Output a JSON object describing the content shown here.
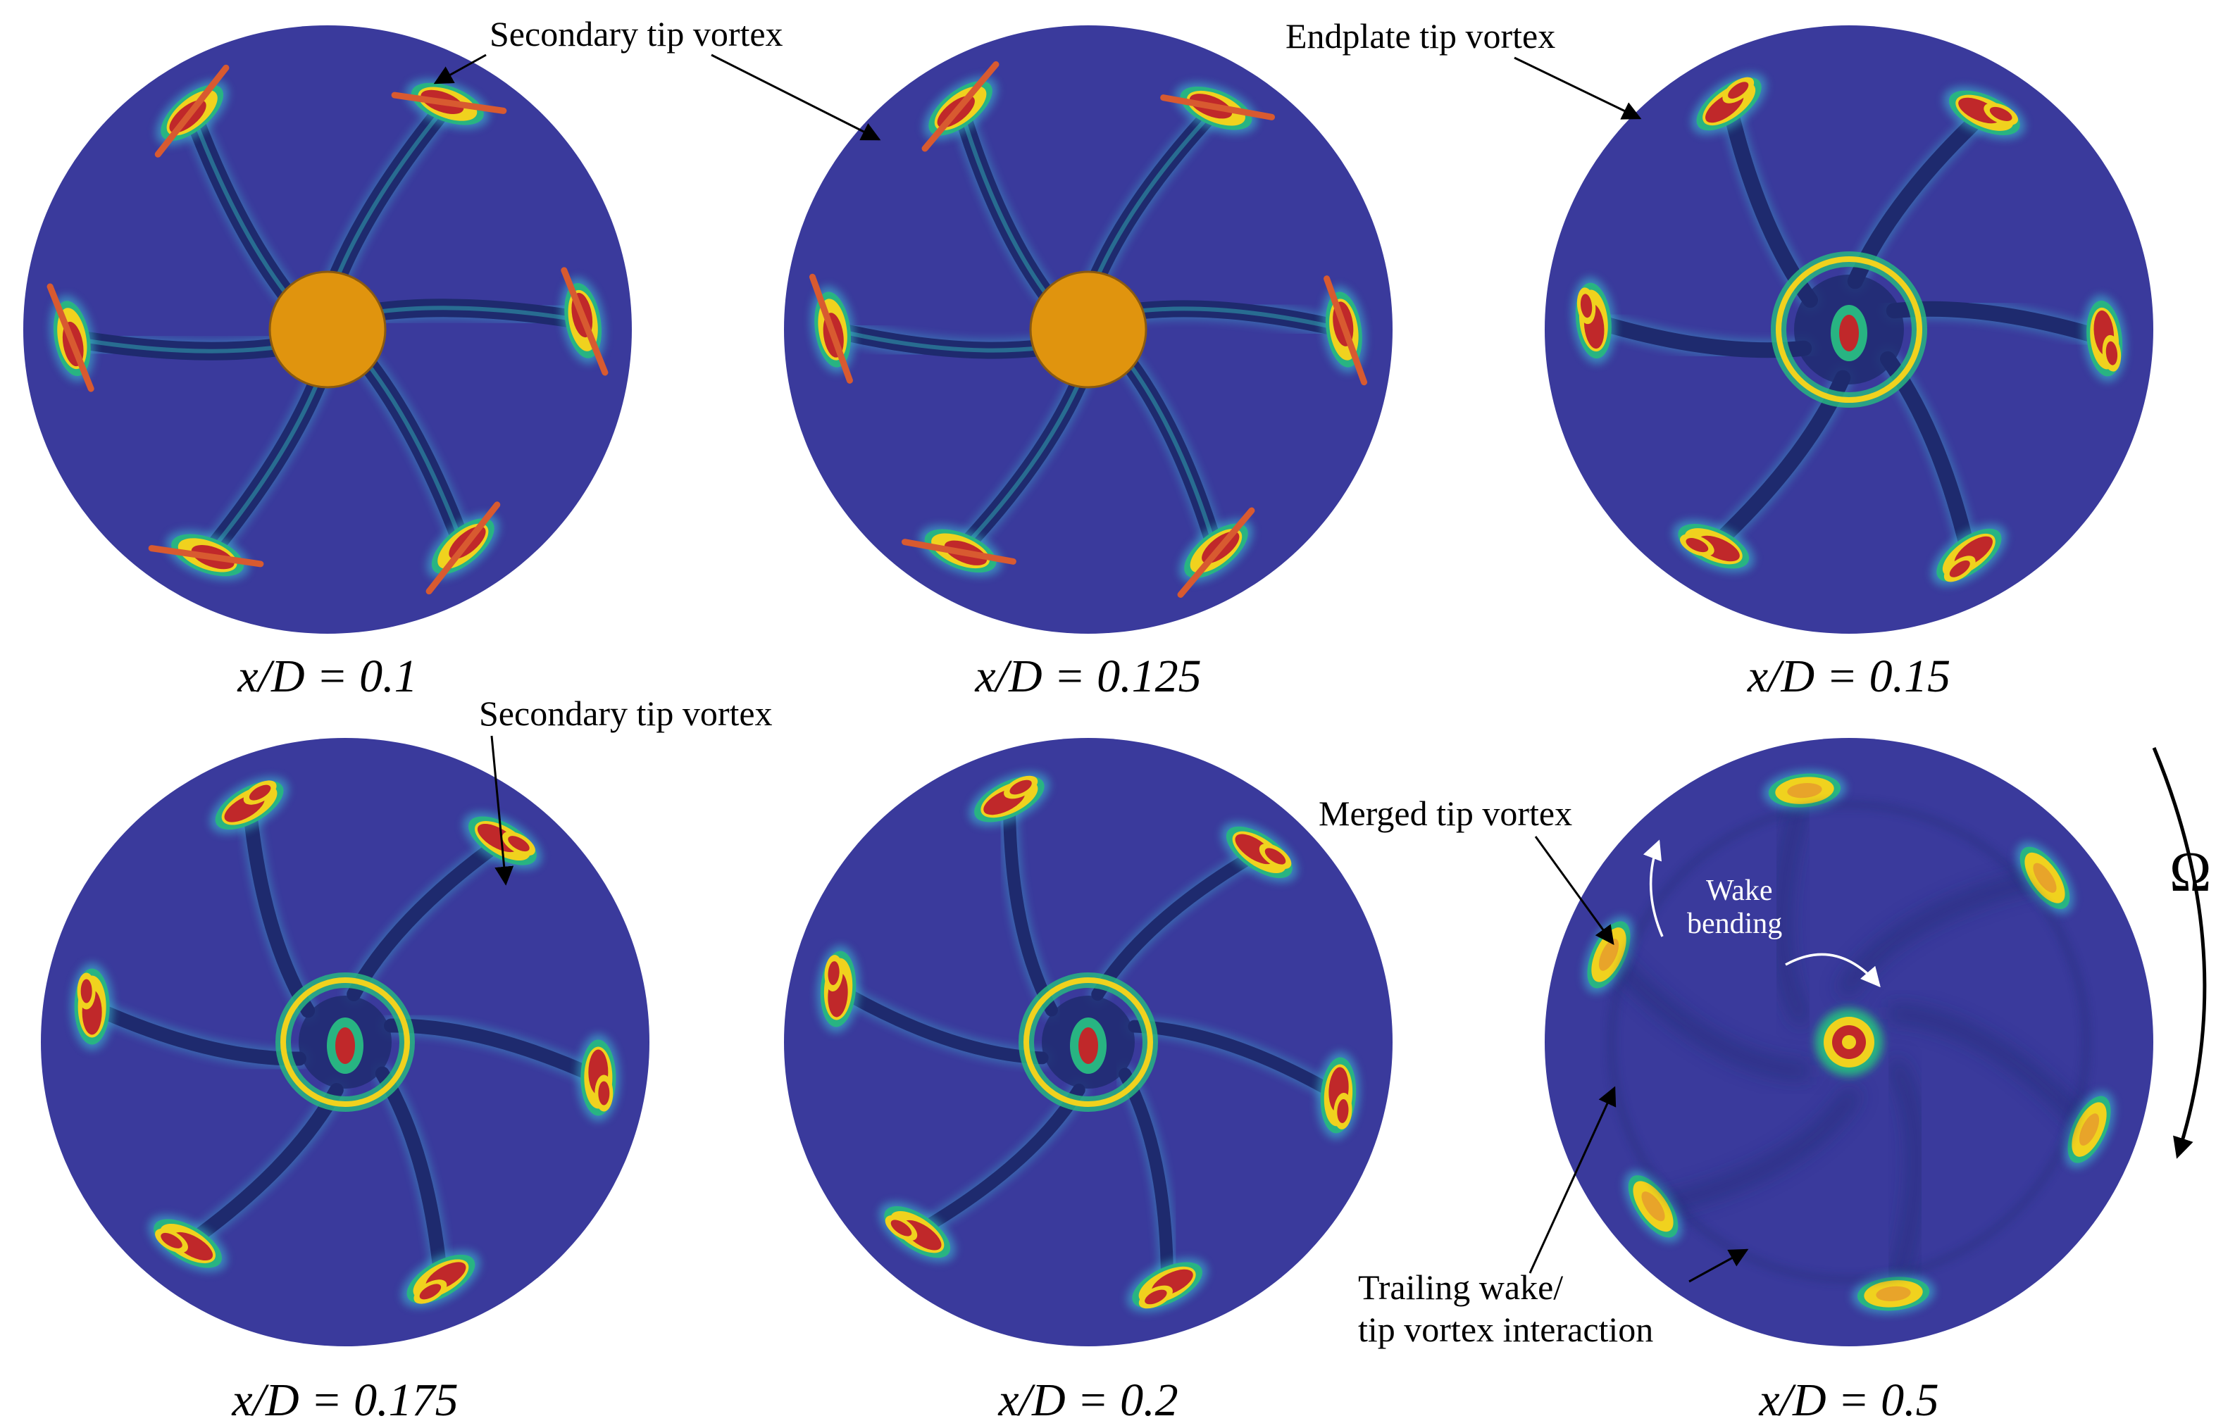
{
  "panels": [
    {
      "caption": "x/D = 0.1",
      "hub": true,
      "stage": 0
    },
    {
      "caption": "x/D = 0.125",
      "hub": true,
      "stage": 1
    },
    {
      "caption": "x/D = 0.15",
      "hub": false,
      "stage": 2
    },
    {
      "caption": "x/D = 0.175",
      "hub": false,
      "stage": 3
    },
    {
      "caption": "x/D = 0.2",
      "hub": false,
      "stage": 4
    },
    {
      "caption": "x/D = 0.5",
      "hub": false,
      "stage": 5
    }
  ],
  "annotations": {
    "secondary_tip_vortex_top": "Secondary tip vortex",
    "endplate_tip_vortex": "Endplate tip vortex",
    "secondary_tip_vortex_bottom": "Secondary tip vortex",
    "merged_tip_vortex": "Merged tip vortex",
    "wake_bending_line1": "Wake",
    "wake_bending_line2": "bending",
    "trailing_wake_line1": "Trailing wake/",
    "trailing_wake_line2": "tip vortex interaction",
    "rotation_symbol": "Ω"
  },
  "colors": {
    "background": "#3a3a9c",
    "hub": "#e0940e",
    "vortex_red": "#c0282a",
    "vortex_yellow": "#f0d21e",
    "vortex_green": "#28b482",
    "vortex_cyan": "#3cc4d8",
    "wake_dark": "#1e2a6e"
  }
}
